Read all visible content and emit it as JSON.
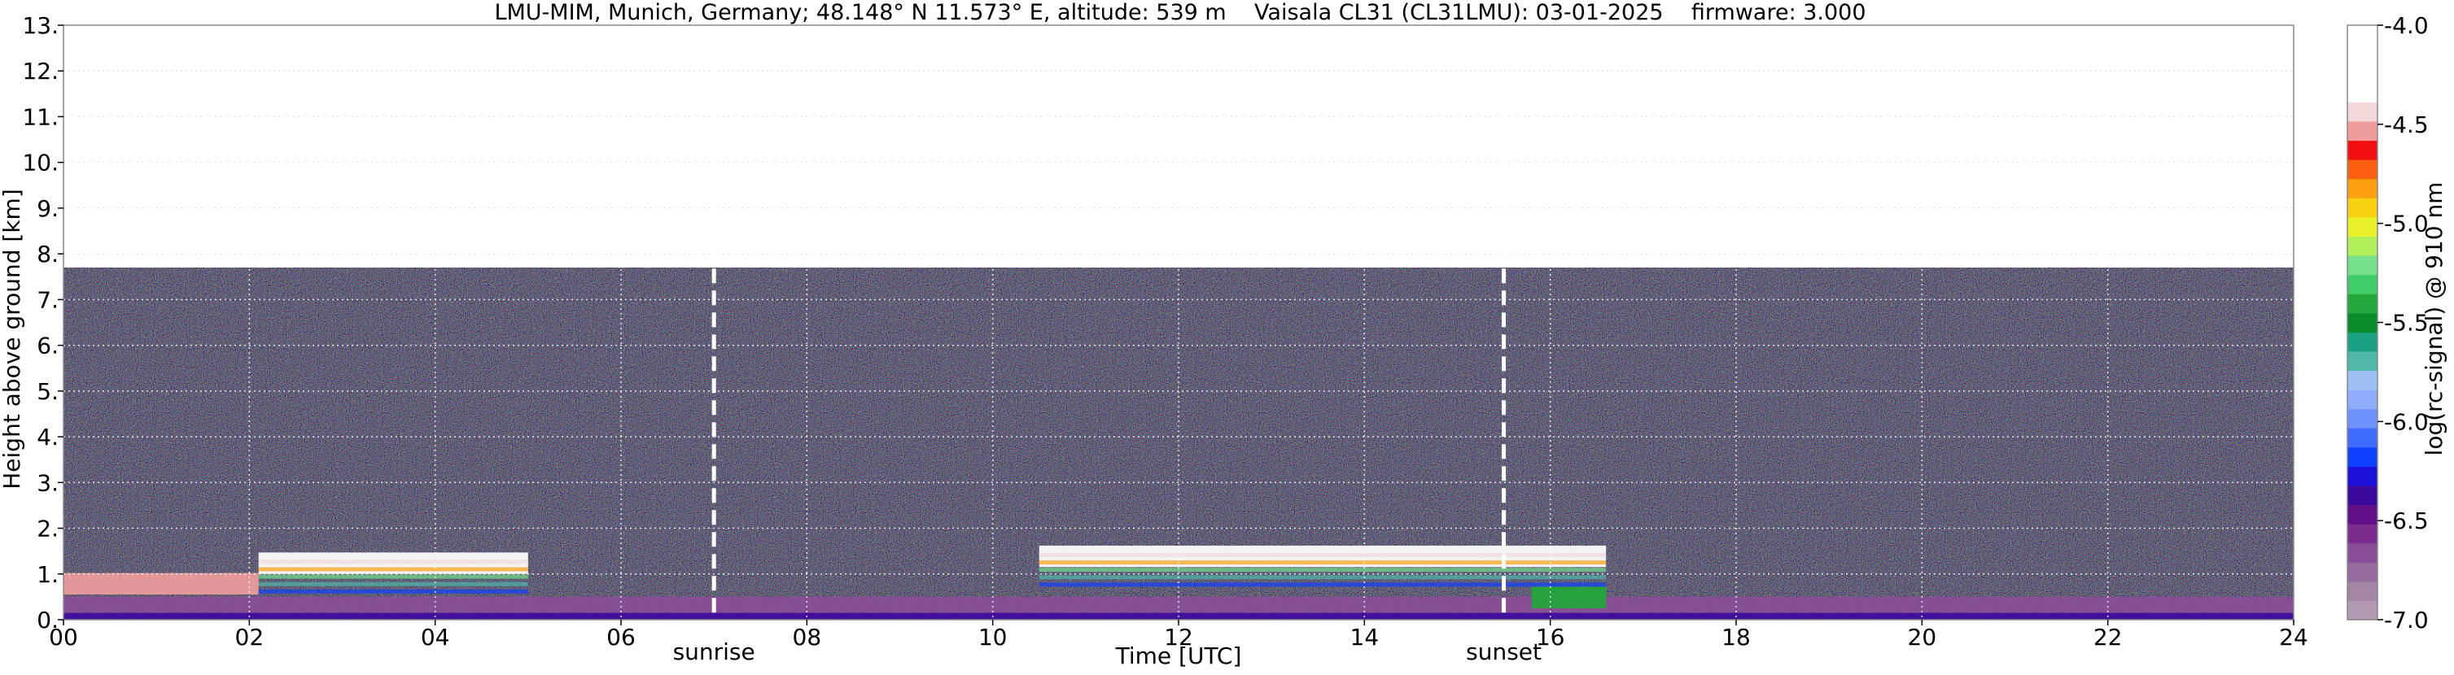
{
  "chart_data": {
    "type": "heatmap",
    "title": "LMU-MIM, Munich, Germany; 48.148° N 11.573° E, altitude: 539 m    Vaisala CL31 (CL31LMU): 03-01-2025    firmware: 3.000",
    "xlabel": "Time [UTC]",
    "ylabel": "Height above ground [km]",
    "xlim": [
      0,
      24
    ],
    "ylim": [
      0,
      13
    ],
    "x_ticks": [
      "00",
      "02",
      "04",
      "06",
      "08",
      "10",
      "12",
      "14",
      "16",
      "18",
      "20",
      "22",
      "24"
    ],
    "y_ticks": [
      "0.",
      "1.",
      "2.",
      "3.",
      "4.",
      "5.",
      "6.",
      "7.",
      "8.",
      "9.",
      "10.",
      "11.",
      "12.",
      "13."
    ],
    "grid": true,
    "grid_style": "dotted white",
    "data_ceiling_km": 7.7,
    "colorbar": {
      "label": "log(rc-signal) @ 910 nm",
      "range": [
        -7.0,
        -4.0
      ],
      "tick_labels": [
        "-7.0",
        "-6.5",
        "-6.0",
        "-5.5",
        "-5.0",
        "-4.5",
        "-4.0"
      ],
      "colors": [
        "#b29ab2",
        "#a284a5",
        "#946b9c",
        "#8a4e98",
        "#7a2c8f",
        "#62108a",
        "#3a0a9c",
        "#1a10d8",
        "#1040ff",
        "#3e6cff",
        "#6e92ff",
        "#91acfb",
        "#9ec0f2",
        "#4fb8a8",
        "#1aa083",
        "#0a8c2a",
        "#22a83a",
        "#40cc68",
        "#74e08c",
        "#b0ee5a",
        "#e8f02a",
        "#f8d010",
        "#fba010",
        "#fb6010",
        "#f01010",
        "#ee9c9c",
        "#f2d8d8",
        "#ffffff",
        "#ffffff",
        "#ffffff",
        "#ffffff"
      ]
    },
    "events": [
      {
        "label": "sunrise",
        "x": 7.0
      },
      {
        "label": "sunset",
        "x": 15.5
      }
    ],
    "features": [
      {
        "name": "aerosol boundary layer",
        "t_start": 0,
        "t_end": 24,
        "height_km": 0.5,
        "log_signal": -6.7
      },
      {
        "name": "low cloud",
        "t_start": 0,
        "t_end": 2.1,
        "height_km": 0.8,
        "log_signal": -4.5
      },
      {
        "name": "cloud layer",
        "t_start": 2.1,
        "t_end": 5.0,
        "height_km": 1.25,
        "log_signal": -4.3
      },
      {
        "name": "cloud layer",
        "t_start": 10.5,
        "t_end": 16.6,
        "height_km": 1.4,
        "log_signal": -4.2
      },
      {
        "name": "rain streaks",
        "t_start": 15.8,
        "t_end": 16.6,
        "height_km": 0.5,
        "log_signal": -5.4
      }
    ]
  }
}
